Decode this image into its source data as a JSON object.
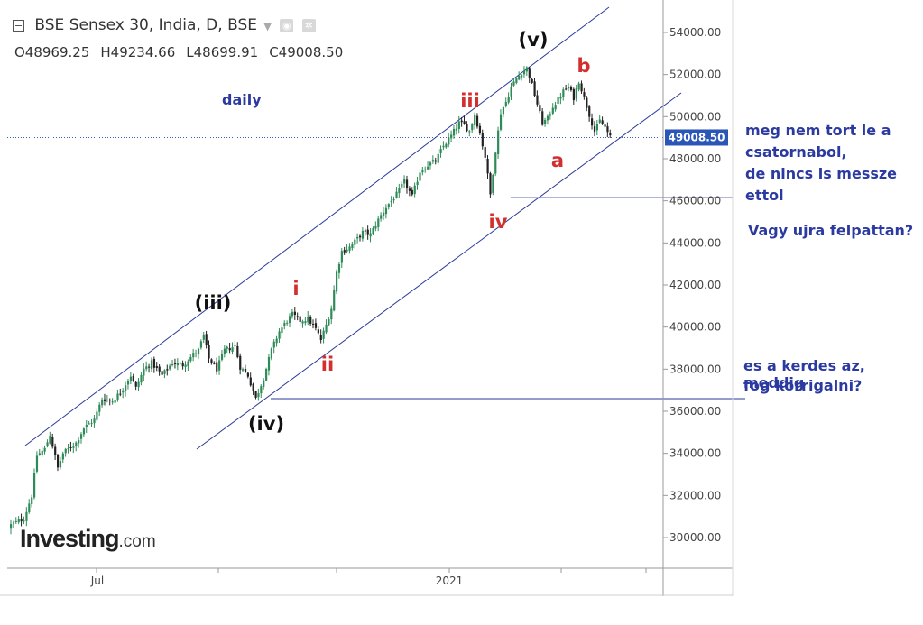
{
  "header": {
    "title": "BSE Sensex 30, India, D, BSE",
    "ohlc": {
      "o": "O48969.25",
      "h": "H49234.66",
      "l": "L48699.91",
      "c": "C49008.50"
    }
  },
  "branding": {
    "name": "Investing",
    "suffix": ".com"
  },
  "timeframe_label": "daily",
  "price_label": "49008.50",
  "comments": [
    "meg nem tort le a",
    "csatornabol,",
    "de nincs is messze",
    "ettol",
    "Vagy ujra felpattan?",
    "es a kerdes az, meddig",
    "fog  korrigalni?"
  ],
  "colors": {
    "up": "#2e8b57",
    "down": "#222222",
    "channel": "#2b3a9a",
    "red_label": "#d32f2f",
    "black_label": "#111111",
    "annotation_text": "#2b3aa0",
    "price_box": "#2a56b8"
  },
  "chart_data": {
    "type": "candlestick",
    "title": "BSE Sensex 30, India, D, BSE",
    "ylim": [
      28600,
      55500
    ],
    "y_ticks": [
      "30000.00",
      "32000.00",
      "34000.00",
      "36000.00",
      "38000.00",
      "40000.00",
      "42000.00",
      "44000.00",
      "46000.00",
      "48000.00",
      "50000.00",
      "52000.00",
      "54000.00"
    ],
    "x_tick_labels": [
      "Jul",
      "2021"
    ],
    "last_price": 49008.5,
    "anchors": [
      [
        0,
        30600
      ],
      [
        5,
        30900
      ],
      [
        8,
        32000
      ],
      [
        10,
        33900
      ],
      [
        13,
        34200
      ],
      [
        15,
        34900
      ],
      [
        18,
        33300
      ],
      [
        20,
        34000
      ],
      [
        25,
        34500
      ],
      [
        28,
        35200
      ],
      [
        32,
        35600
      ],
      [
        35,
        36600
      ],
      [
        39,
        36500
      ],
      [
        42,
        36900
      ],
      [
        46,
        37700
      ],
      [
        48,
        37100
      ],
      [
        51,
        38000
      ],
      [
        54,
        38300
      ],
      [
        58,
        37700
      ],
      [
        62,
        38300
      ],
      [
        66,
        38200
      ],
      [
        70,
        38700
      ],
      [
        72,
        38900
      ],
      [
        74,
        39600
      ],
      [
        76,
        38500
      ],
      [
        79,
        38000
      ],
      [
        82,
        38900
      ],
      [
        86,
        39100
      ],
      [
        88,
        38100
      ],
      [
        91,
        37700
      ],
      [
        94,
        36600
      ],
      [
        97,
        37600
      ],
      [
        100,
        38900
      ],
      [
        103,
        39800
      ],
      [
        106,
        40300
      ],
      [
        108,
        40600
      ],
      [
        111,
        40300
      ],
      [
        114,
        40400
      ],
      [
        117,
        39900
      ],
      [
        119,
        39400
      ],
      [
        121,
        40100
      ],
      [
        123,
        40900
      ],
      [
        125,
        42600
      ],
      [
        127,
        43600
      ],
      [
        130,
        43800
      ],
      [
        133,
        44200
      ],
      [
        135,
        44500
      ],
      [
        138,
        44400
      ],
      [
        141,
        45100
      ],
      [
        144,
        45700
      ],
      [
        148,
        46300
      ],
      [
        151,
        46900
      ],
      [
        154,
        46200
      ],
      [
        157,
        47400
      ],
      [
        160,
        47700
      ],
      [
        163,
        47900
      ],
      [
        166,
        48600
      ],
      [
        169,
        49100
      ],
      [
        172,
        49700
      ],
      [
        174,
        49600
      ],
      [
        176,
        49300
      ],
      [
        178,
        50100
      ],
      [
        180,
        49200
      ],
      [
        182,
        48100
      ],
      [
        184,
        46300
      ],
      [
        186,
        48400
      ],
      [
        188,
        50200
      ],
      [
        190,
        50700
      ],
      [
        192,
        51400
      ],
      [
        194,
        51800
      ],
      [
        196,
        52100
      ],
      [
        198,
        52300
      ],
      [
        200,
        51500
      ],
      [
        202,
        50600
      ],
      [
        204,
        49700
      ],
      [
        206,
        49900
      ],
      [
        208,
        50500
      ],
      [
        210,
        50800
      ],
      [
        212,
        51200
      ],
      [
        214,
        51400
      ],
      [
        216,
        50900
      ],
      [
        218,
        51700
      ],
      [
        220,
        50900
      ],
      [
        222,
        50100
      ],
      [
        224,
        49300
      ],
      [
        226,
        49800
      ],
      [
        228,
        49500
      ],
      [
        230,
        49008.5
      ]
    ]
  },
  "annotations": {
    "wave_black": [
      "(iii)",
      "(iv)",
      "(v)"
    ],
    "wave_red": [
      "i",
      "ii",
      "iii",
      "iv",
      "a",
      "b"
    ]
  }
}
